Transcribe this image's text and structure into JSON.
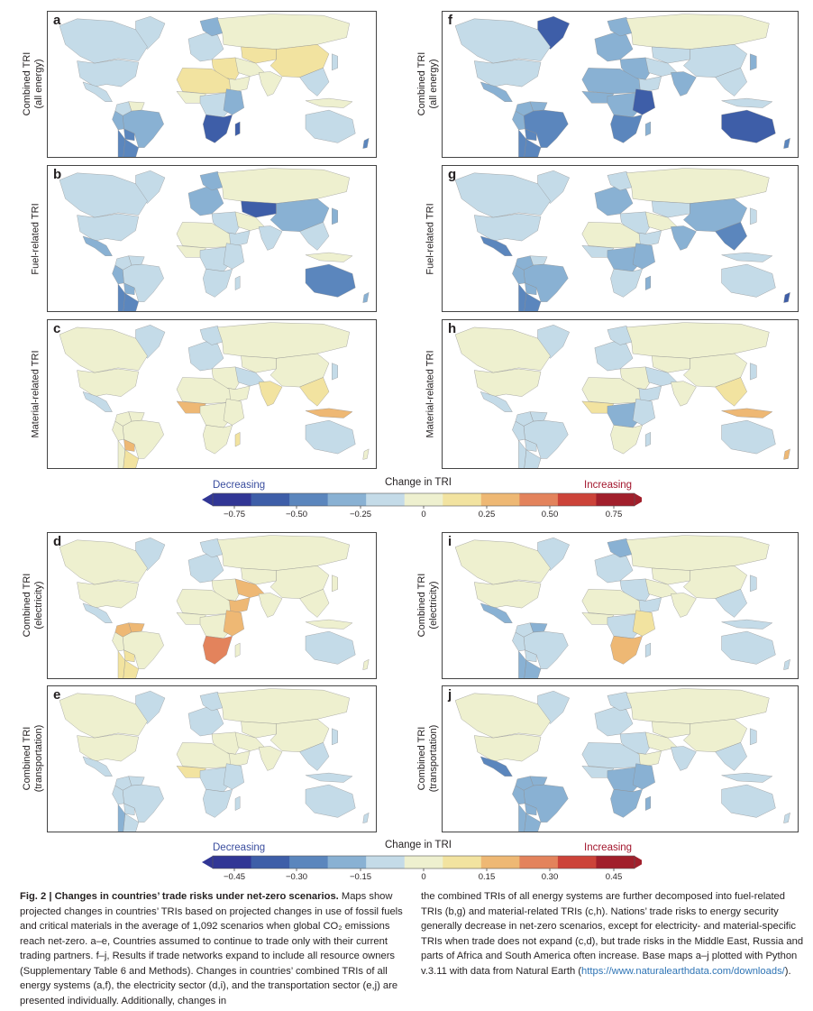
{
  "figure": {
    "panels": [
      {
        "id": "a",
        "label": "a",
        "row_label": [
          "Combined TRI",
          "(all energy)"
        ],
        "style": "all"
      },
      {
        "id": "f",
        "label": "f",
        "row_label": [
          "Combined TRI",
          "(all energy)"
        ],
        "style": "all_expand"
      },
      {
        "id": "b",
        "label": "b",
        "row_label": [
          "Fuel-related TRI"
        ],
        "style": "fuel"
      },
      {
        "id": "g",
        "label": "g",
        "row_label": [
          "Fuel-related TRI"
        ],
        "style": "fuel_expand"
      },
      {
        "id": "c",
        "label": "c",
        "row_label": [
          "Material-related TRI"
        ],
        "style": "material"
      },
      {
        "id": "h",
        "label": "h",
        "row_label": [
          "Material-related TRI"
        ],
        "style": "material_expand"
      },
      {
        "id": "d",
        "label": "d",
        "row_label": [
          "Combined TRI",
          "(electricity)"
        ],
        "style": "elec"
      },
      {
        "id": "i",
        "label": "i",
        "row_label": [
          "Combined TRI",
          "(electricity)"
        ],
        "style": "elec_expand"
      },
      {
        "id": "e",
        "label": "e",
        "row_label": [
          "Combined TRI",
          "(transportation)"
        ],
        "style": "trans"
      },
      {
        "id": "j",
        "label": "j",
        "row_label": [
          "Combined TRI",
          "(transportation)"
        ],
        "style": "trans_expand"
      }
    ],
    "colorbar_top": {
      "title": "Change in TRI",
      "left_label": "Decreasing",
      "right_label": "Increasing",
      "ticks": [
        "−0.75",
        "−0.50",
        "−0.25",
        "0",
        "0.25",
        "0.50",
        "0.75"
      ]
    },
    "colorbar_bottom": {
      "title": "Change in TRI",
      "left_label": "Decreasing",
      "right_label": "Increasing",
      "ticks": [
        "−0.45",
        "−0.30",
        "−0.15",
        "0",
        "0.15",
        "0.30",
        "0.45"
      ]
    },
    "palette": [
      "#313695",
      "#3e5ea8",
      "#5b86bd",
      "#89b1d3",
      "#c4dbe8",
      "#eef0cf",
      "#f2e3a0",
      "#eeb874",
      "#e3835c",
      "#cc4339",
      "#a11f2b"
    ],
    "colors": {
      "decreasing_label": "#3a4d9e",
      "increasing_label": "#a3162d",
      "link": "#2e74b5"
    }
  },
  "caption": {
    "fig_label": "Fig. 2 | ",
    "title": "Changes in countries’ trade risks under net-zero scenarios.",
    "left_text": " Maps show projected changes in countries’ TRIs based on projected changes in use of fossil fuels and critical materials in the average of 1,092 scenarios when global CO₂ emissions reach net-zero. a–e, Countries assumed to continue to trade only with their current trading partners. f–j, Results if trade networks expand to include all resource owners (Supplementary Table 6 and Methods). Changes in countries’ combined TRIs of all energy systems (a,f), the electricity sector (d,i), and the transportation sector (e,j) are presented individually. Additionally, changes in",
    "right_text": "the combined TRIs of all energy systems are further decomposed into fuel-related TRIs (b,g) and material-related TRIs (c,h). Nations’ trade risks to energy security generally decrease in net-zero scenarios, except for electricity- and material-specific TRIs when trade does not expand (c,d), but trade risks in the Middle East, Russia and parts of Africa and South America often increase. Base maps a–j plotted with Python v.3.11 with data from Natural Earth (",
    "link_text": "https://www.naturalearthdata.com/downloads/",
    "right_end": ")."
  }
}
